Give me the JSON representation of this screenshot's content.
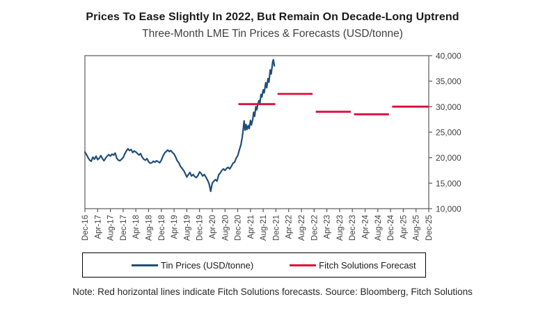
{
  "header": {
    "title": "Prices To Ease Slightly In 2022, But Remain On Decade-Long Uptrend",
    "subtitle": "Three-Month LME Tin Prices & Forecasts (USD/tonne)"
  },
  "note": "Note: Red horizontal lines indicate Fitch Solutions forecasts. Source: Bloomberg, Fitch Solutions",
  "chart_data": {
    "type": "line",
    "title": "Prices To Ease Slightly In 2022, But Remain On Decade-Long Uptrend",
    "subtitle": "Three-Month LME Tin Prices & Forecasts (USD/tonne)",
    "grid": false,
    "legend_position": "bottom-box",
    "axis_color": "#595959",
    "tick_label_color": "#3f3f3f",
    "xlim_months": [
      0,
      108
    ],
    "ylim": [
      10000,
      40000
    ],
    "x_unit": "months since Dec-16, ticks every 4 months",
    "x_tick_labels": [
      "Dec-16",
      "Apr-17",
      "Aug-17",
      "Dec-17",
      "Apr-18",
      "Aug-18",
      "Dec-18",
      "Apr-19",
      "Aug-19",
      "Dec-19",
      "Apr-20",
      "Aug-20",
      "Dec-20",
      "Apr-21",
      "Aug-21",
      "Dec-21",
      "Apr-22",
      "Aug-22",
      "Dec-22",
      "Apr-23",
      "Aug-23",
      "Dec-23",
      "Apr-24",
      "Aug-24",
      "Dec-24",
      "Apr-25",
      "Aug-25",
      "Dec-25"
    ],
    "y_ticks": [
      {
        "value": 10000,
        "label": "10,000"
      },
      {
        "value": 15000,
        "label": "15,000"
      },
      {
        "value": 20000,
        "label": "20,000"
      },
      {
        "value": 25000,
        "label": "25,000"
      },
      {
        "value": 30000,
        "label": "30,000"
      },
      {
        "value": 35000,
        "label": "35,000"
      },
      {
        "value": 40000,
        "label": "40,000"
      }
    ],
    "series": [
      {
        "name": "Tin Prices (USD/tonne)",
        "type": "line",
        "color": "#1f4e79",
        "points": [
          [
            0,
            21100
          ],
          [
            0.5,
            20600
          ],
          [
            1,
            20000
          ],
          [
            1.5,
            19500
          ],
          [
            2,
            19300
          ],
          [
            2.5,
            20100
          ],
          [
            3,
            19700
          ],
          [
            3.5,
            20300
          ],
          [
            4,
            19600
          ],
          [
            4.5,
            19900
          ],
          [
            5,
            20400
          ],
          [
            5.5,
            19800
          ],
          [
            6,
            19400
          ],
          [
            6.5,
            19900
          ],
          [
            7,
            20300
          ],
          [
            7.5,
            20600
          ],
          [
            8,
            20300
          ],
          [
            8.5,
            20700
          ],
          [
            9,
            20500
          ],
          [
            9.5,
            20900
          ],
          [
            10,
            19900
          ],
          [
            10.5,
            19500
          ],
          [
            11,
            19400
          ],
          [
            11.5,
            19700
          ],
          [
            12,
            20000
          ],
          [
            12.5,
            20700
          ],
          [
            13,
            21300
          ],
          [
            13.5,
            21750
          ],
          [
            14,
            21400
          ],
          [
            14.5,
            21600
          ],
          [
            15,
            21000
          ],
          [
            15.5,
            21300
          ],
          [
            16,
            21100
          ],
          [
            16.5,
            20800
          ],
          [
            17,
            20500
          ],
          [
            17.5,
            20800
          ],
          [
            18,
            20100
          ],
          [
            18.5,
            19700
          ],
          [
            19,
            19500
          ],
          [
            19.5,
            19800
          ],
          [
            20,
            19200
          ],
          [
            20.5,
            18900
          ],
          [
            21,
            19000
          ],
          [
            21.5,
            19300
          ],
          [
            22,
            19100
          ],
          [
            22.5,
            19400
          ],
          [
            23,
            19200
          ],
          [
            23.5,
            19000
          ],
          [
            24,
            19500
          ],
          [
            24.5,
            20300
          ],
          [
            25,
            20900
          ],
          [
            25.5,
            21200
          ],
          [
            26,
            21500
          ],
          [
            26.5,
            21200
          ],
          [
            27,
            21400
          ],
          [
            27.5,
            21000
          ],
          [
            28,
            20700
          ],
          [
            28.5,
            20100
          ],
          [
            29,
            19400
          ],
          [
            29.5,
            19000
          ],
          [
            30,
            18300
          ],
          [
            30.5,
            17900
          ],
          [
            31,
            17500
          ],
          [
            31.5,
            16900
          ],
          [
            32,
            16200
          ],
          [
            32.5,
            16700
          ],
          [
            33,
            17100
          ],
          [
            33.5,
            16400
          ],
          [
            34,
            16700
          ],
          [
            34.5,
            16300
          ],
          [
            35,
            16100
          ],
          [
            35.5,
            16500
          ],
          [
            36,
            17200
          ],
          [
            36.5,
            16900
          ],
          [
            37,
            16400
          ],
          [
            37.5,
            16700
          ],
          [
            38,
            16200
          ],
          [
            38.5,
            15600
          ],
          [
            39,
            14900
          ],
          [
            39.5,
            13400
          ],
          [
            40,
            15000
          ],
          [
            40.5,
            15400
          ],
          [
            41,
            15700
          ],
          [
            41.5,
            15400
          ],
          [
            42,
            16600
          ],
          [
            42.5,
            17000
          ],
          [
            43,
            17500
          ],
          [
            43.5,
            17800
          ],
          [
            44,
            17500
          ],
          [
            44.5,
            17900
          ],
          [
            45,
            18100
          ],
          [
            45.5,
            17800
          ],
          [
            46,
            18300
          ],
          [
            46.5,
            18900
          ],
          [
            47,
            19100
          ],
          [
            47.5,
            19900
          ],
          [
            48,
            20400
          ],
          [
            48.5,
            21500
          ],
          [
            49,
            22500
          ],
          [
            49.4,
            24000
          ],
          [
            49.7,
            25400
          ],
          [
            50,
            27200
          ],
          [
            50.3,
            25400
          ],
          [
            50.6,
            26500
          ],
          [
            50.9,
            25500
          ],
          [
            51.3,
            26300
          ],
          [
            51.6,
            25700
          ],
          [
            52,
            27300
          ],
          [
            52.3,
            26400
          ],
          [
            52.7,
            27500
          ],
          [
            53,
            28900
          ],
          [
            53.3,
            28100
          ],
          [
            53.7,
            30000
          ],
          [
            54,
            29400
          ],
          [
            54.3,
            30500
          ],
          [
            54.7,
            31200
          ],
          [
            55,
            30800
          ],
          [
            55.3,
            32400
          ],
          [
            55.6,
            31900
          ],
          [
            56,
            33300
          ],
          [
            56.3,
            32700
          ],
          [
            56.8,
            34700
          ],
          [
            57.1,
            33700
          ],
          [
            57.5,
            35500
          ],
          [
            57.8,
            34800
          ],
          [
            58.2,
            37200
          ],
          [
            58.5,
            36400
          ],
          [
            59,
            38900
          ],
          [
            59.2,
            39200
          ],
          [
            59.5,
            38000
          ]
        ]
      },
      {
        "name": "Fitch Solutions Forecast",
        "type": "segments",
        "color": "#d90e3b",
        "segments": [
          {
            "start_month": 48.2,
            "end_month": 59.8,
            "value": 30500
          },
          {
            "start_month": 60.5,
            "end_month": 71.5,
            "value": 32500
          },
          {
            "start_month": 72.5,
            "end_month": 83.5,
            "value": 29000
          },
          {
            "start_month": 84.5,
            "end_month": 95.5,
            "value": 28500
          },
          {
            "start_month": 96.5,
            "end_month": 108,
            "value": 30000
          }
        ]
      }
    ]
  }
}
